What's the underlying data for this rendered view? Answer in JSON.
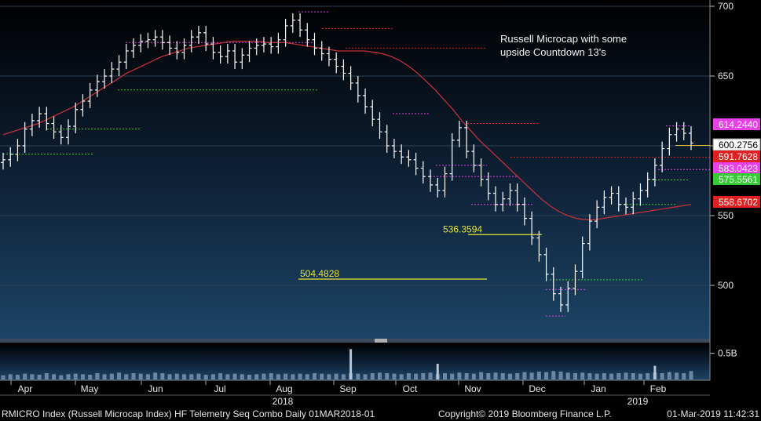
{
  "chart_data": {
    "type": "ohlc",
    "annotation": [
      "Russell Microcap with some",
      "upside Countdown 13's"
    ],
    "x_ticks": [
      "Apr",
      "May",
      "Jun",
      "Jul",
      "Aug",
      "Sep",
      "Oct",
      "Nov",
      "Dec",
      "Jan",
      "Feb"
    ],
    "year_labels": [
      "2018",
      "2019"
    ],
    "y_ticks": [
      500,
      550,
      600,
      650,
      700
    ],
    "ylim": [
      465,
      705
    ],
    "volume_tick": "0.5B",
    "price_tags": [
      {
        "label": "614.2440",
        "value": 614.244,
        "color": "#e640e6"
      },
      {
        "label": "600.2756",
        "value": 600.2756,
        "color": "#ffffff"
      },
      {
        "label": "591.7628",
        "value": 591.7628,
        "color": "#e02020"
      },
      {
        "label": "583.0423",
        "value": 583.0423,
        "color": "#e640e6"
      },
      {
        "label": "575.5561",
        "value": 575.5561,
        "color": "#33cc33"
      },
      {
        "label": "558.6702",
        "value": 558.6702,
        "color": "#e02020"
      }
    ],
    "level_labels": [
      {
        "label": "536.3594",
        "value": 536.36
      },
      {
        "label": "504.4828",
        "value": 504.48
      }
    ],
    "close": [
      590,
      594,
      600,
      612,
      618,
      623,
      616,
      610,
      606,
      614,
      626,
      632,
      640,
      646,
      650,
      655,
      660,
      668,
      672,
      675,
      676,
      678,
      674,
      670,
      667,
      672,
      678,
      681,
      673,
      667,
      664,
      668,
      660,
      665,
      670,
      672,
      673,
      671,
      676,
      686,
      690,
      683,
      676,
      670,
      666,
      662,
      657,
      652,
      645,
      636,
      628,
      619,
      610,
      600,
      596,
      592,
      590,
      584,
      578,
      572,
      568,
      580,
      604,
      613,
      596,
      586,
      576,
      566,
      558,
      562,
      568,
      558,
      548,
      534,
      522,
      508,
      494,
      486,
      498,
      510,
      530,
      546,
      556,
      563,
      566,
      558,
      556,
      562,
      568,
      576,
      586,
      598,
      608,
      612,
      609,
      602
    ],
    "volume": [
      0.08,
      0.1,
      0.09,
      0.11,
      0.1,
      0.09,
      0.12,
      0.1,
      0.08,
      0.1,
      0.11,
      0.1,
      0.09,
      0.12,
      0.1,
      0.11,
      0.13,
      0.1,
      0.12,
      0.11,
      0.1,
      0.13,
      0.12,
      0.1,
      0.11,
      0.1,
      0.1,
      0.11,
      0.09,
      0.1,
      0.12,
      0.1,
      0.11,
      0.1,
      0.09,
      0.1,
      0.11,
      0.12,
      0.1,
      0.11,
      0.1,
      0.11,
      0.1,
      0.12,
      0.11,
      0.1,
      0.11,
      0.1,
      0.12,
      0.11,
      0.1,
      0.12,
      0.13,
      0.12,
      0.11,
      0.1,
      0.12,
      0.11,
      0.12,
      0.13,
      0.1,
      0.12,
      0.11,
      0.13,
      0.12,
      0.11,
      0.14,
      0.12,
      0.13,
      0.12,
      0.11,
      0.12,
      0.14,
      0.13,
      0.15,
      0.14,
      0.16,
      0.15,
      0.13,
      0.12,
      0.13,
      0.12,
      0.11,
      0.12,
      0.11,
      0.12,
      0.13,
      0.12,
      0.11,
      0.12,
      0.13,
      0.12,
      0.14,
      0.13,
      0.12,
      0.16
    ],
    "volume_spikes": [
      {
        "index": 48,
        "value": 0.58
      },
      {
        "index": 60,
        "value": 0.3
      },
      {
        "index": 90,
        "value": 0.26
      }
    ],
    "ma": [
      608,
      610,
      612,
      614,
      616,
      619,
      622,
      625,
      628,
      632,
      636,
      640,
      644,
      648,
      652,
      655,
      658,
      661,
      664,
      666,
      668,
      670,
      671,
      672,
      673,
      674,
      675,
      675,
      675,
      675,
      674,
      674,
      674,
      673,
      672,
      671,
      670,
      669,
      668,
      668,
      668,
      668,
      667,
      666,
      664,
      661,
      657,
      652,
      646,
      640,
      633,
      626,
      618,
      611,
      604,
      598,
      592,
      586,
      580,
      574,
      568,
      562,
      557,
      553,
      550,
      548,
      547,
      547,
      548,
      549,
      550,
      551,
      552,
      553,
      554,
      555,
      556,
      557,
      558
    ]
  },
  "footer": {
    "left": "RMICRO Index (Russell Microcap Index) HF Telemetry Seq Combo  Daily 01MAR2018-01",
    "center": "Copyright© 2019 Bloomberg Finance L.P.",
    "right": "01-Mar-2019 11:42:31"
  }
}
